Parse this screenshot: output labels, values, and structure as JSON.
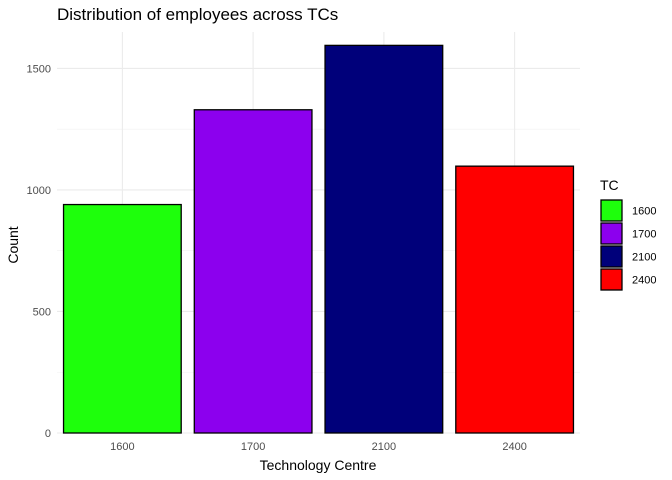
{
  "chart_data": {
    "type": "bar",
    "title": "Distribution of employees across TCs",
    "xlabel": "Technology Centre",
    "ylabel": "Count",
    "categories": [
      "1600",
      "1700",
      "2100",
      "2400"
    ],
    "values": [
      940,
      1330,
      1595,
      1098
    ],
    "colors": [
      "#1EFF0C",
      "#8C00EE",
      "#00007A",
      "#FF0000"
    ],
    "ylim": [
      0,
      1650
    ],
    "yticks": [
      0,
      500,
      1000,
      1500
    ],
    "y_minor_ticks": [
      250,
      750,
      1250
    ],
    "grid": true,
    "legend": {
      "title": "TC",
      "placement": "right",
      "entries": [
        "1600",
        "1700",
        "2100",
        "2400"
      ]
    }
  }
}
